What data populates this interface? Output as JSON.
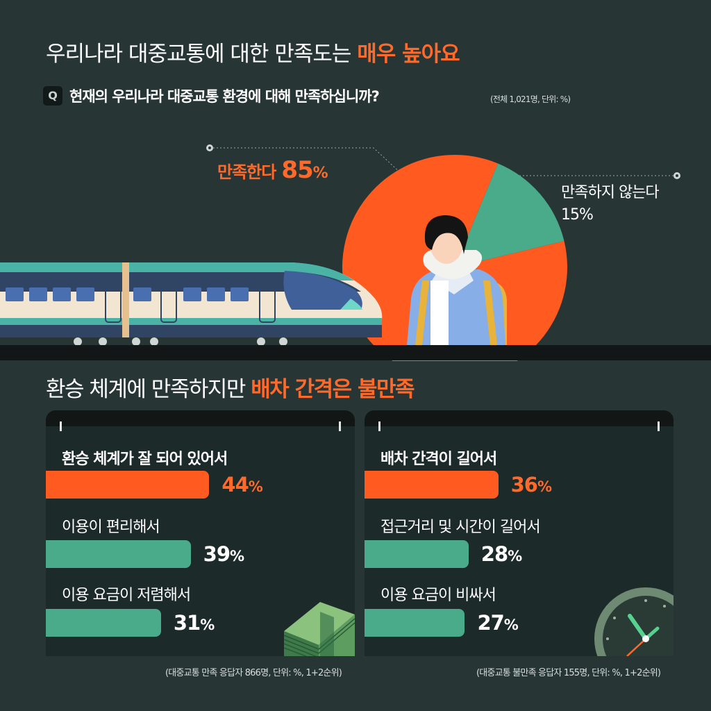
{
  "header": {
    "title_plain": "우리나라 대중교통에 대한 만족도는 ",
    "title_accent": "매우 높아요",
    "question_badge": "Q",
    "question": "현재의 우리나라 대중교통 환경에 대해 만족하십니까?",
    "base_note": "(전체 1,021명, 단위: %)"
  },
  "pie_labels": {
    "satisfied_label": "만족한다",
    "satisfied_value": "85",
    "dissatisfied_label": "만족하지 않는다",
    "dissatisfied_value": "15%",
    "pct_sign": "%"
  },
  "section2": {
    "title_plain": "환승 체계에 만족하지만 ",
    "title_accent": "배차 간격은 불만족"
  },
  "colors": {
    "background": "#273634",
    "accent_orange": "#ff5a1f",
    "green": "#4aab8a",
    "panel": "#1c2a29"
  },
  "chart_data": [
    {
      "type": "pie",
      "title": "현재의 우리나라 대중교통 환경에 대해 만족하십니까?",
      "unit": "%",
      "slices": [
        {
          "label": "만족한다",
          "value": 85,
          "color": "#ff5a1f"
        },
        {
          "label": "만족하지 않는다",
          "value": 15,
          "color": "#4aab8a"
        }
      ]
    },
    {
      "type": "bar",
      "orientation": "horizontal",
      "unit": "%",
      "categories": [
        "환승 체계가 잘 되어 있어서",
        "이용이 편리해서",
        "이용 요금이 저렴해서"
      ],
      "values": [
        44,
        39,
        31
      ],
      "highlight_index": 0,
      "footnote": "(대중교통 만족 응답자 866명, 단위: %, 1+2순위)"
    },
    {
      "type": "bar",
      "orientation": "horizontal",
      "unit": "%",
      "categories": [
        "배차 간격이 길어서",
        "접근거리 및 시간이 길어서",
        "이용 요금이 비싸서"
      ],
      "values": [
        36,
        28,
        27
      ],
      "highlight_index": 0,
      "footnote": "(대중교통 불만족 응답자 155명, 단위: %, 1+2순위)"
    }
  ]
}
